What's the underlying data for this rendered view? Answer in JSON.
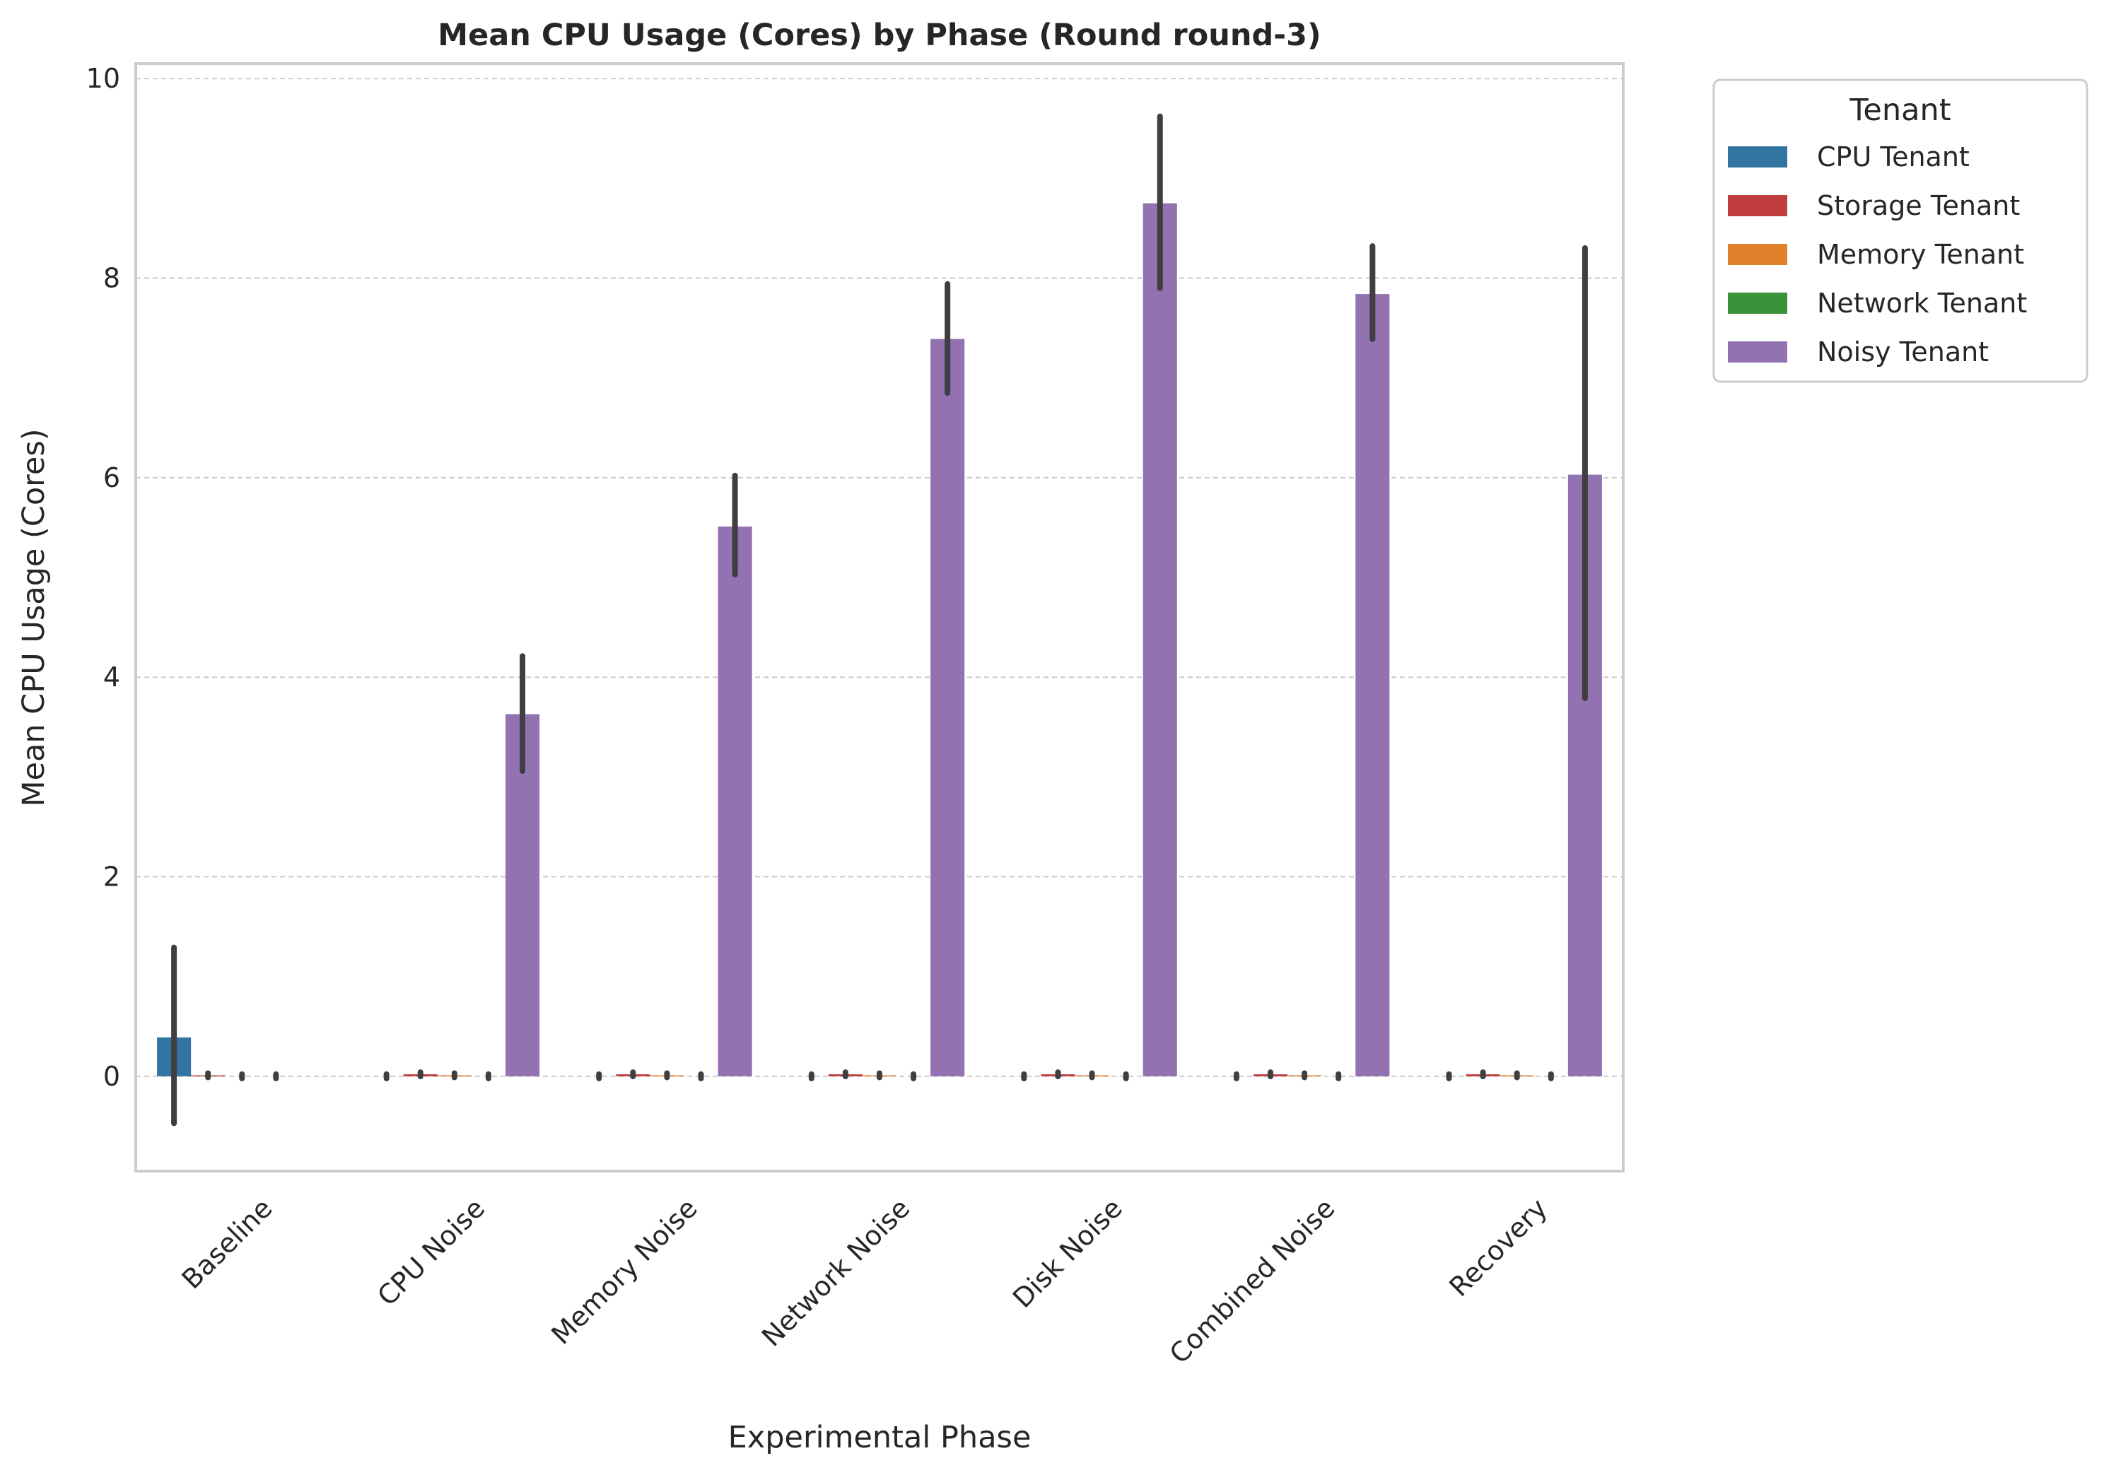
{
  "chart_data": {
    "type": "bar",
    "title": "Mean CPU Usage (Cores) by Phase (Round round-3)",
    "xlabel": "Experimental Phase",
    "ylabel": "Mean CPU Usage (Cores)",
    "ylim": [
      -0.95,
      10.15
    ],
    "yticks": [
      0,
      2,
      4,
      6,
      8,
      10
    ],
    "grid": true,
    "legend_title": "Tenant",
    "legend_position": "outside-top-right",
    "categories": [
      "Baseline",
      "CPU Noise",
      "Memory Noise",
      "Network Noise",
      "Disk Noise",
      "Combined Noise",
      "Recovery"
    ],
    "series": [
      {
        "name": "CPU Tenant",
        "color": "#3274a1",
        "values": [
          0.39,
          0.0,
          0.0,
          0.0,
          0.0,
          0.0,
          0.0
        ],
        "err_low": [
          -0.45,
          0.0,
          0.0,
          0.0,
          0.0,
          0.0,
          0.0
        ],
        "err_high": [
          1.27,
          0.0,
          0.0,
          0.0,
          0.0,
          0.0,
          0.0
        ]
      },
      {
        "name": "Storage Tenant",
        "color": "#c03d3e",
        "values": [
          0.01,
          0.02,
          0.02,
          0.02,
          0.02,
          0.02,
          0.02
        ],
        "err_low": [
          0.01,
          0.02,
          0.02,
          0.02,
          0.02,
          0.02,
          0.02
        ],
        "err_high": [
          0.01,
          0.02,
          0.02,
          0.02,
          0.02,
          0.02,
          0.02
        ]
      },
      {
        "name": "Memory Tenant",
        "color": "#e1812c",
        "values": [
          0.0,
          0.01,
          0.01,
          0.01,
          0.01,
          0.01,
          0.01
        ],
        "err_low": [
          0.0,
          0.01,
          0.01,
          0.01,
          0.01,
          0.01,
          0.01
        ],
        "err_high": [
          0.0,
          0.01,
          0.01,
          0.01,
          0.01,
          0.01,
          0.01
        ]
      },
      {
        "name": "Network Tenant",
        "color": "#3a923a",
        "values": [
          0.0,
          0.0,
          0.0,
          0.0,
          0.0,
          0.0,
          0.0
        ],
        "err_low": [
          0.0,
          0.0,
          0.0,
          0.0,
          0.0,
          0.0,
          0.0
        ],
        "err_high": [
          0.0,
          0.0,
          0.0,
          0.0,
          0.0,
          0.0,
          0.0
        ]
      },
      {
        "name": "Noisy Tenant",
        "color": "#9372b2",
        "values": [
          null,
          3.63,
          5.51,
          7.39,
          8.75,
          7.84,
          6.03
        ],
        "err_low": [
          null,
          3.08,
          5.05,
          6.87,
          7.92,
          7.41,
          3.81
        ],
        "err_high": [
          null,
          4.19,
          6.0,
          7.92,
          9.6,
          8.3,
          8.28
        ]
      }
    ]
  }
}
